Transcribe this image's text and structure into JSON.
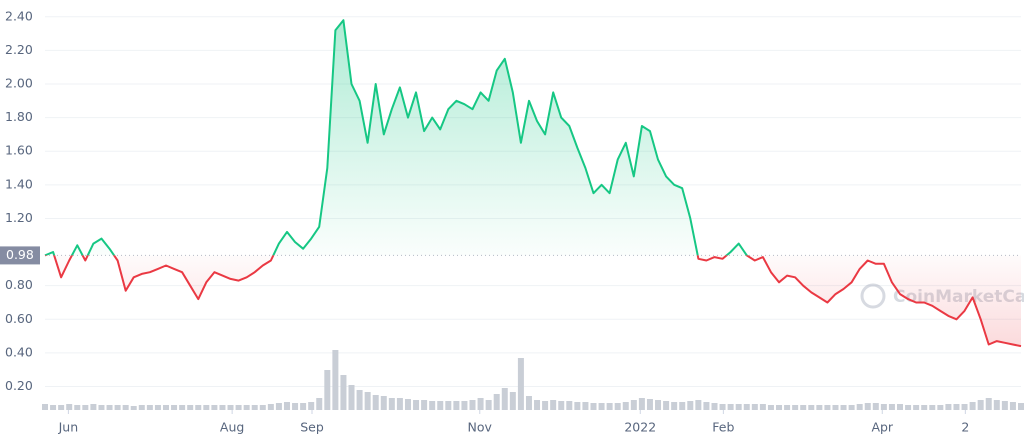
{
  "chart_data": {
    "type": "line",
    "watermark": "CoinMarketCap",
    "xlim": [
      0,
      121
    ],
    "xticks": [
      {
        "value": 2.9,
        "label": "Jun"
      },
      {
        "value": 23.2,
        "label": "Aug"
      },
      {
        "value": 33.1,
        "label": "Sep"
      },
      {
        "value": 53.9,
        "label": "Nov"
      },
      {
        "value": 73.8,
        "label": "2022"
      },
      {
        "value": 84.1,
        "label": "Feb"
      },
      {
        "value": 103.8,
        "label": "Apr"
      },
      {
        "value": 114.1,
        "label": "2"
      }
    ],
    "ylim": [
      0.06,
      2.5
    ],
    "yticks": [
      {
        "value": 0.2,
        "label": "0.20"
      },
      {
        "value": 0.4,
        "label": "0.40"
      },
      {
        "value": 0.6,
        "label": "0.60"
      },
      {
        "value": 0.8,
        "label": "0.80"
      },
      {
        "value": 1.2,
        "label": "1.20"
      },
      {
        "value": 1.4,
        "label": "1.40"
      },
      {
        "value": 1.6,
        "label": "1.60"
      },
      {
        "value": 1.8,
        "label": "1.80"
      },
      {
        "value": 2.0,
        "label": "2.00"
      },
      {
        "value": 2.2,
        "label": "2.20"
      },
      {
        "value": 2.4,
        "label": "2.40"
      }
    ],
    "baseline": {
      "value": 0.98,
      "label": "0.98"
    },
    "grid": true,
    "up_color": "#16c784",
    "down_color": "#ea3943",
    "series": [
      {
        "values": [
          0.98,
          1.0,
          0.85,
          0.95,
          1.04,
          0.95,
          1.05,
          1.08,
          1.02,
          0.95,
          0.77,
          0.85,
          0.87,
          0.88,
          0.9,
          0.92,
          0.9,
          0.88,
          0.8,
          0.72,
          0.82,
          0.88,
          0.86,
          0.84,
          0.83,
          0.85,
          0.88,
          0.92,
          0.95,
          1.05,
          1.12,
          1.06,
          1.02,
          1.08,
          1.15,
          1.5,
          2.32,
          2.38,
          2.0,
          1.9,
          1.65,
          2.0,
          1.7,
          1.85,
          1.98,
          1.8,
          1.95,
          1.72,
          1.8,
          1.73,
          1.85,
          1.9,
          1.88,
          1.85,
          1.95,
          1.9,
          2.08,
          2.15,
          1.95,
          1.65,
          1.9,
          1.78,
          1.7,
          1.95,
          1.8,
          1.75,
          1.62,
          1.5,
          1.35,
          1.4,
          1.35,
          1.55,
          1.65,
          1.45,
          1.75,
          1.72,
          1.55,
          1.45,
          1.4,
          1.38,
          1.2,
          0.96,
          0.95,
          0.97,
          0.96,
          1.0,
          1.05,
          0.98,
          0.95,
          0.97,
          0.88,
          0.82,
          0.86,
          0.85,
          0.8,
          0.76,
          0.73,
          0.7,
          0.75,
          0.78,
          0.82,
          0.9,
          0.95,
          0.93,
          0.93,
          0.82,
          0.75,
          0.72,
          0.7,
          0.7,
          0.68,
          0.65,
          0.62,
          0.6,
          0.65,
          0.73,
          0.6,
          0.45,
          0.47,
          0.46,
          0.45,
          0.44
        ]
      }
    ],
    "volume": {
      "color": "#c9ced6",
      "values": [
        6,
        5,
        5,
        6,
        5,
        5,
        6,
        5,
        5,
        5,
        5,
        4,
        5,
        5,
        5,
        5,
        5,
        5,
        5,
        5,
        5,
        5,
        5,
        5,
        5,
        5,
        5,
        5,
        6,
        7,
        8,
        7,
        7,
        8,
        12,
        40,
        60,
        35,
        25,
        20,
        18,
        15,
        14,
        12,
        12,
        11,
        10,
        10,
        9,
        9,
        9,
        9,
        9,
        10,
        12,
        10,
        16,
        22,
        18,
        52,
        14,
        10,
        9,
        10,
        9,
        9,
        8,
        8,
        7,
        7,
        7,
        7,
        8,
        10,
        12,
        11,
        10,
        9,
        8,
        8,
        9,
        10,
        8,
        7,
        6,
        6,
        6,
        6,
        6,
        6,
        5,
        5,
        5,
        5,
        5,
        5,
        5,
        5,
        5,
        5,
        5,
        6,
        7,
        7,
        6,
        6,
        6,
        5,
        5,
        5,
        5,
        5,
        6,
        6,
        6,
        8,
        10,
        12,
        10,
        9,
        8,
        7
      ]
    }
  }
}
